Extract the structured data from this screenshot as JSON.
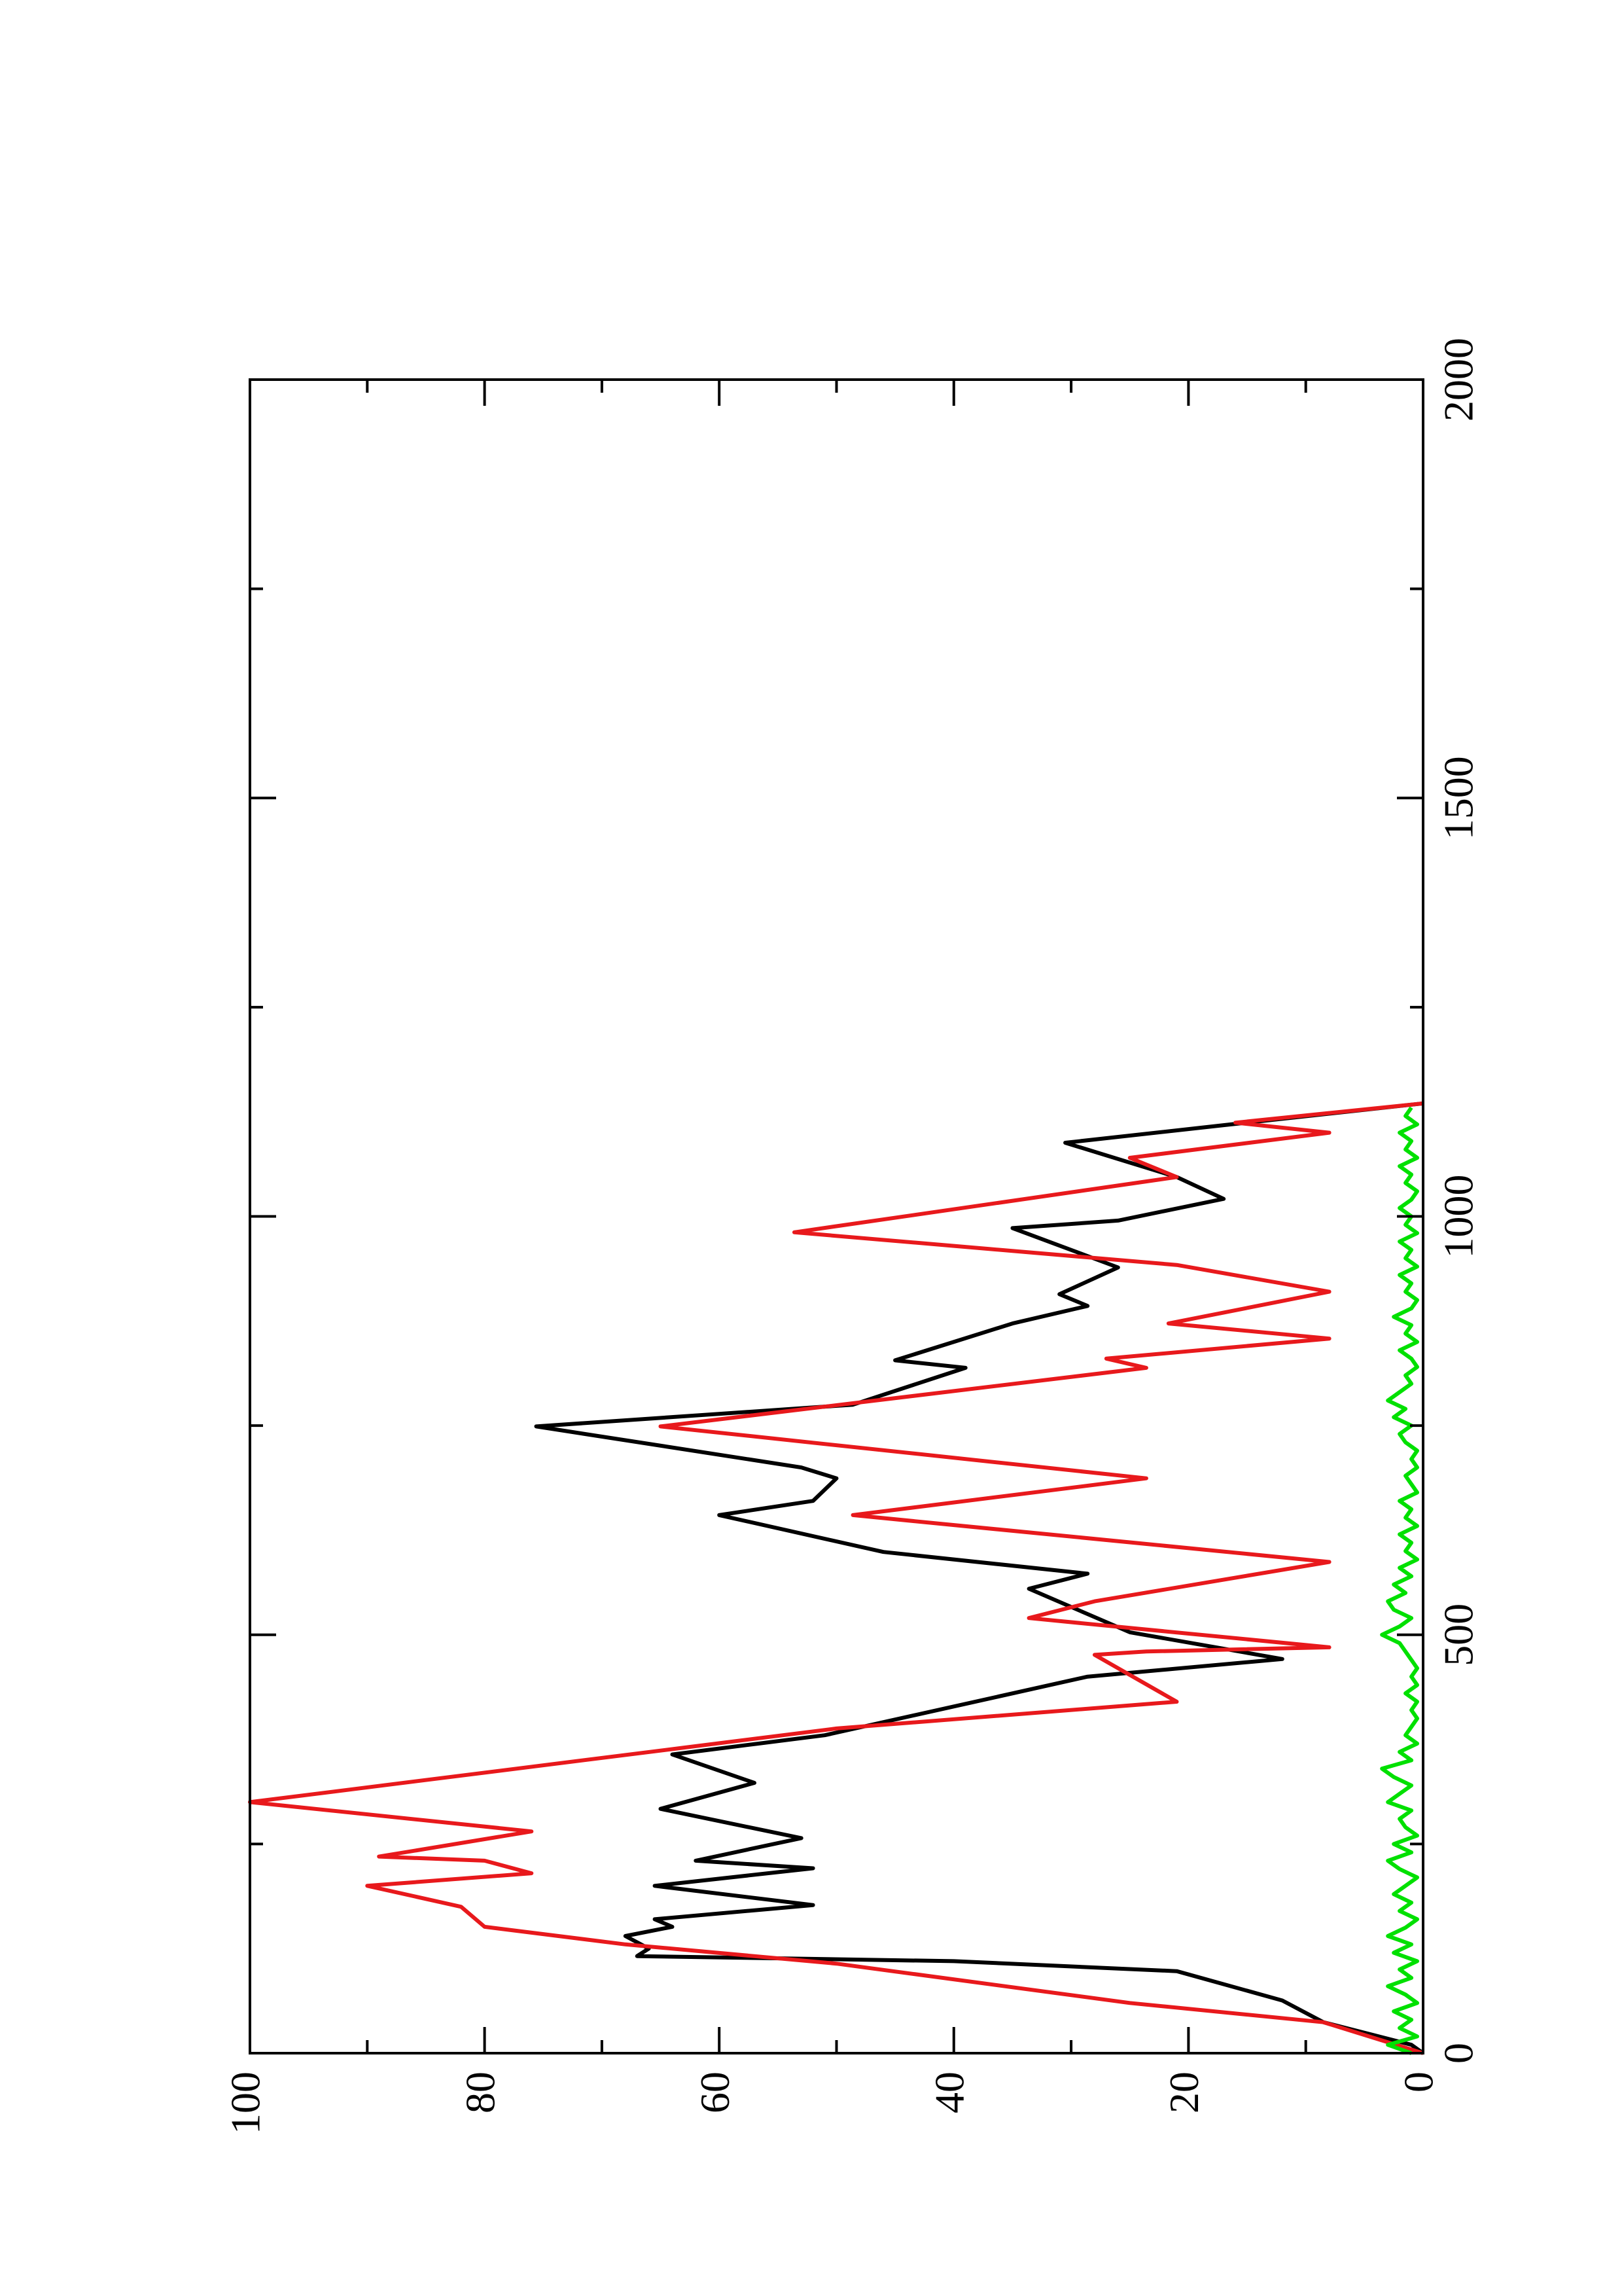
{
  "chart_data": {
    "type": "line",
    "xlim": [
      0,
      2000
    ],
    "xticks": [
      0,
      500,
      1000,
      1500,
      2000
    ],
    "xminor_ticks": [
      250,
      750,
      1250,
      1750
    ],
    "ylim": [
      0,
      100
    ],
    "yticks": [
      0,
      20,
      40,
      60,
      80,
      100
    ],
    "yminor_ticks": [
      10,
      30,
      50,
      70,
      90
    ],
    "grid": false,
    "rotated": true,
    "series": [
      {
        "color": "#000000",
        "x": [
          0,
          10,
          37,
          63,
          98,
          110,
          116,
          125,
          140,
          151,
          160,
          177,
          200,
          221,
          230,
          257,
          292,
          323,
          357,
          380,
          450,
          471,
          503,
          555,
          573,
          599,
          643,
          660,
          687,
          700,
          749,
          775,
          819,
          828,
          872,
          893,
          907,
          939,
          986,
          995,
          1021,
          1047,
          1088,
          1109,
          1135
        ],
        "values": [
          0,
          1,
          8.5,
          12,
          21,
          40,
          67,
          66,
          68,
          64,
          65.5,
          52,
          65.5,
          52,
          62,
          53,
          65,
          57,
          64,
          51,
          28.6,
          12,
          25,
          33.6,
          28.6,
          46,
          60,
          52,
          50,
          53,
          75.6,
          48.6,
          39,
          45,
          35,
          28.6,
          31,
          26,
          35,
          26,
          17,
          21,
          30.5,
          17,
          0
        ]
      },
      {
        "color": "#e8191c",
        "x": [
          0,
          37,
          60,
          107,
          130,
          151,
          175,
          200,
          215,
          230,
          235,
          265,
          300,
          388,
          420,
          476,
          480,
          485,
          520,
          540,
          587,
          643,
          687,
          749,
          819,
          830,
          854,
          872,
          910,
          942,
          981,
          1047,
          1070,
          1100,
          1112,
          1135
        ],
        "values": [
          0,
          8.5,
          25,
          50,
          68,
          80,
          82,
          90,
          76,
          80,
          89,
          76,
          100,
          50,
          21,
          28,
          23.6,
          8,
          33.6,
          28,
          8,
          48.6,
          23.6,
          65,
          23.6,
          27,
          8,
          21.7,
          8,
          21,
          53.6,
          21,
          25,
          8,
          16,
          0
        ]
      },
      {
        "color": "#00e000",
        "x": [
          0,
          10,
          20,
          30,
          40,
          50,
          60,
          70,
          80,
          90,
          100,
          110,
          120,
          130,
          140,
          150,
          160,
          170,
          180,
          190,
          200,
          210,
          220,
          230,
          240,
          250,
          260,
          270,
          280,
          290,
          300,
          310,
          320,
          330,
          340,
          350,
          360,
          370,
          380,
          390,
          400,
          410,
          420,
          430,
          440,
          450,
          460,
          470,
          480,
          490,
          500,
          510,
          520,
          530,
          540,
          550,
          560,
          570,
          580,
          590,
          600,
          610,
          620,
          630,
          640,
          650,
          660,
          670,
          680,
          690,
          700,
          710,
          720,
          730,
          740,
          750,
          760,
          770,
          780,
          790,
          800,
          810,
          820,
          830,
          840,
          850,
          860,
          870,
          880,
          890,
          900,
          910,
          920,
          930,
          940,
          950,
          960,
          970,
          980,
          990,
          1000,
          1010,
          1020,
          1030,
          1040,
          1050,
          1060,
          1070,
          1080,
          1090,
          1100,
          1110,
          1120,
          1130
        ],
        "values": [
          1,
          3,
          0.5,
          2,
          1,
          2.5,
          0.5,
          1.5,
          3,
          1,
          2,
          0.5,
          2.5,
          1,
          3,
          1.5,
          0.5,
          2,
          1,
          2.5,
          1.5,
          0.5,
          2,
          3,
          1,
          2.5,
          0.5,
          1.5,
          2,
          1,
          3,
          2,
          1,
          2.5,
          3.5,
          1,
          2,
          0.5,
          1.5,
          1,
          0.5,
          1,
          0.5,
          1.5,
          0.5,
          1,
          0.5,
          1,
          1.5,
          2,
          3.5,
          2,
          1,
          2.5,
          3,
          1.5,
          2.5,
          1,
          2,
          0.5,
          1.5,
          1,
          2,
          0.5,
          1.5,
          1,
          2,
          0.5,
          1,
          1.5,
          0.5,
          1,
          0.5,
          1.5,
          2,
          1,
          2.5,
          1.5,
          3,
          2,
          1,
          1.5,
          0.5,
          1,
          2,
          0.5,
          1.5,
          1,
          2.5,
          1,
          0.5,
          1.5,
          1,
          2,
          0.5,
          1.5,
          1,
          2,
          0.5,
          1.5,
          1,
          2,
          1,
          0.5,
          1.5,
          1,
          2,
          0.5,
          1.5,
          1,
          2,
          0.5,
          1.5,
          1
        ]
      }
    ]
  }
}
